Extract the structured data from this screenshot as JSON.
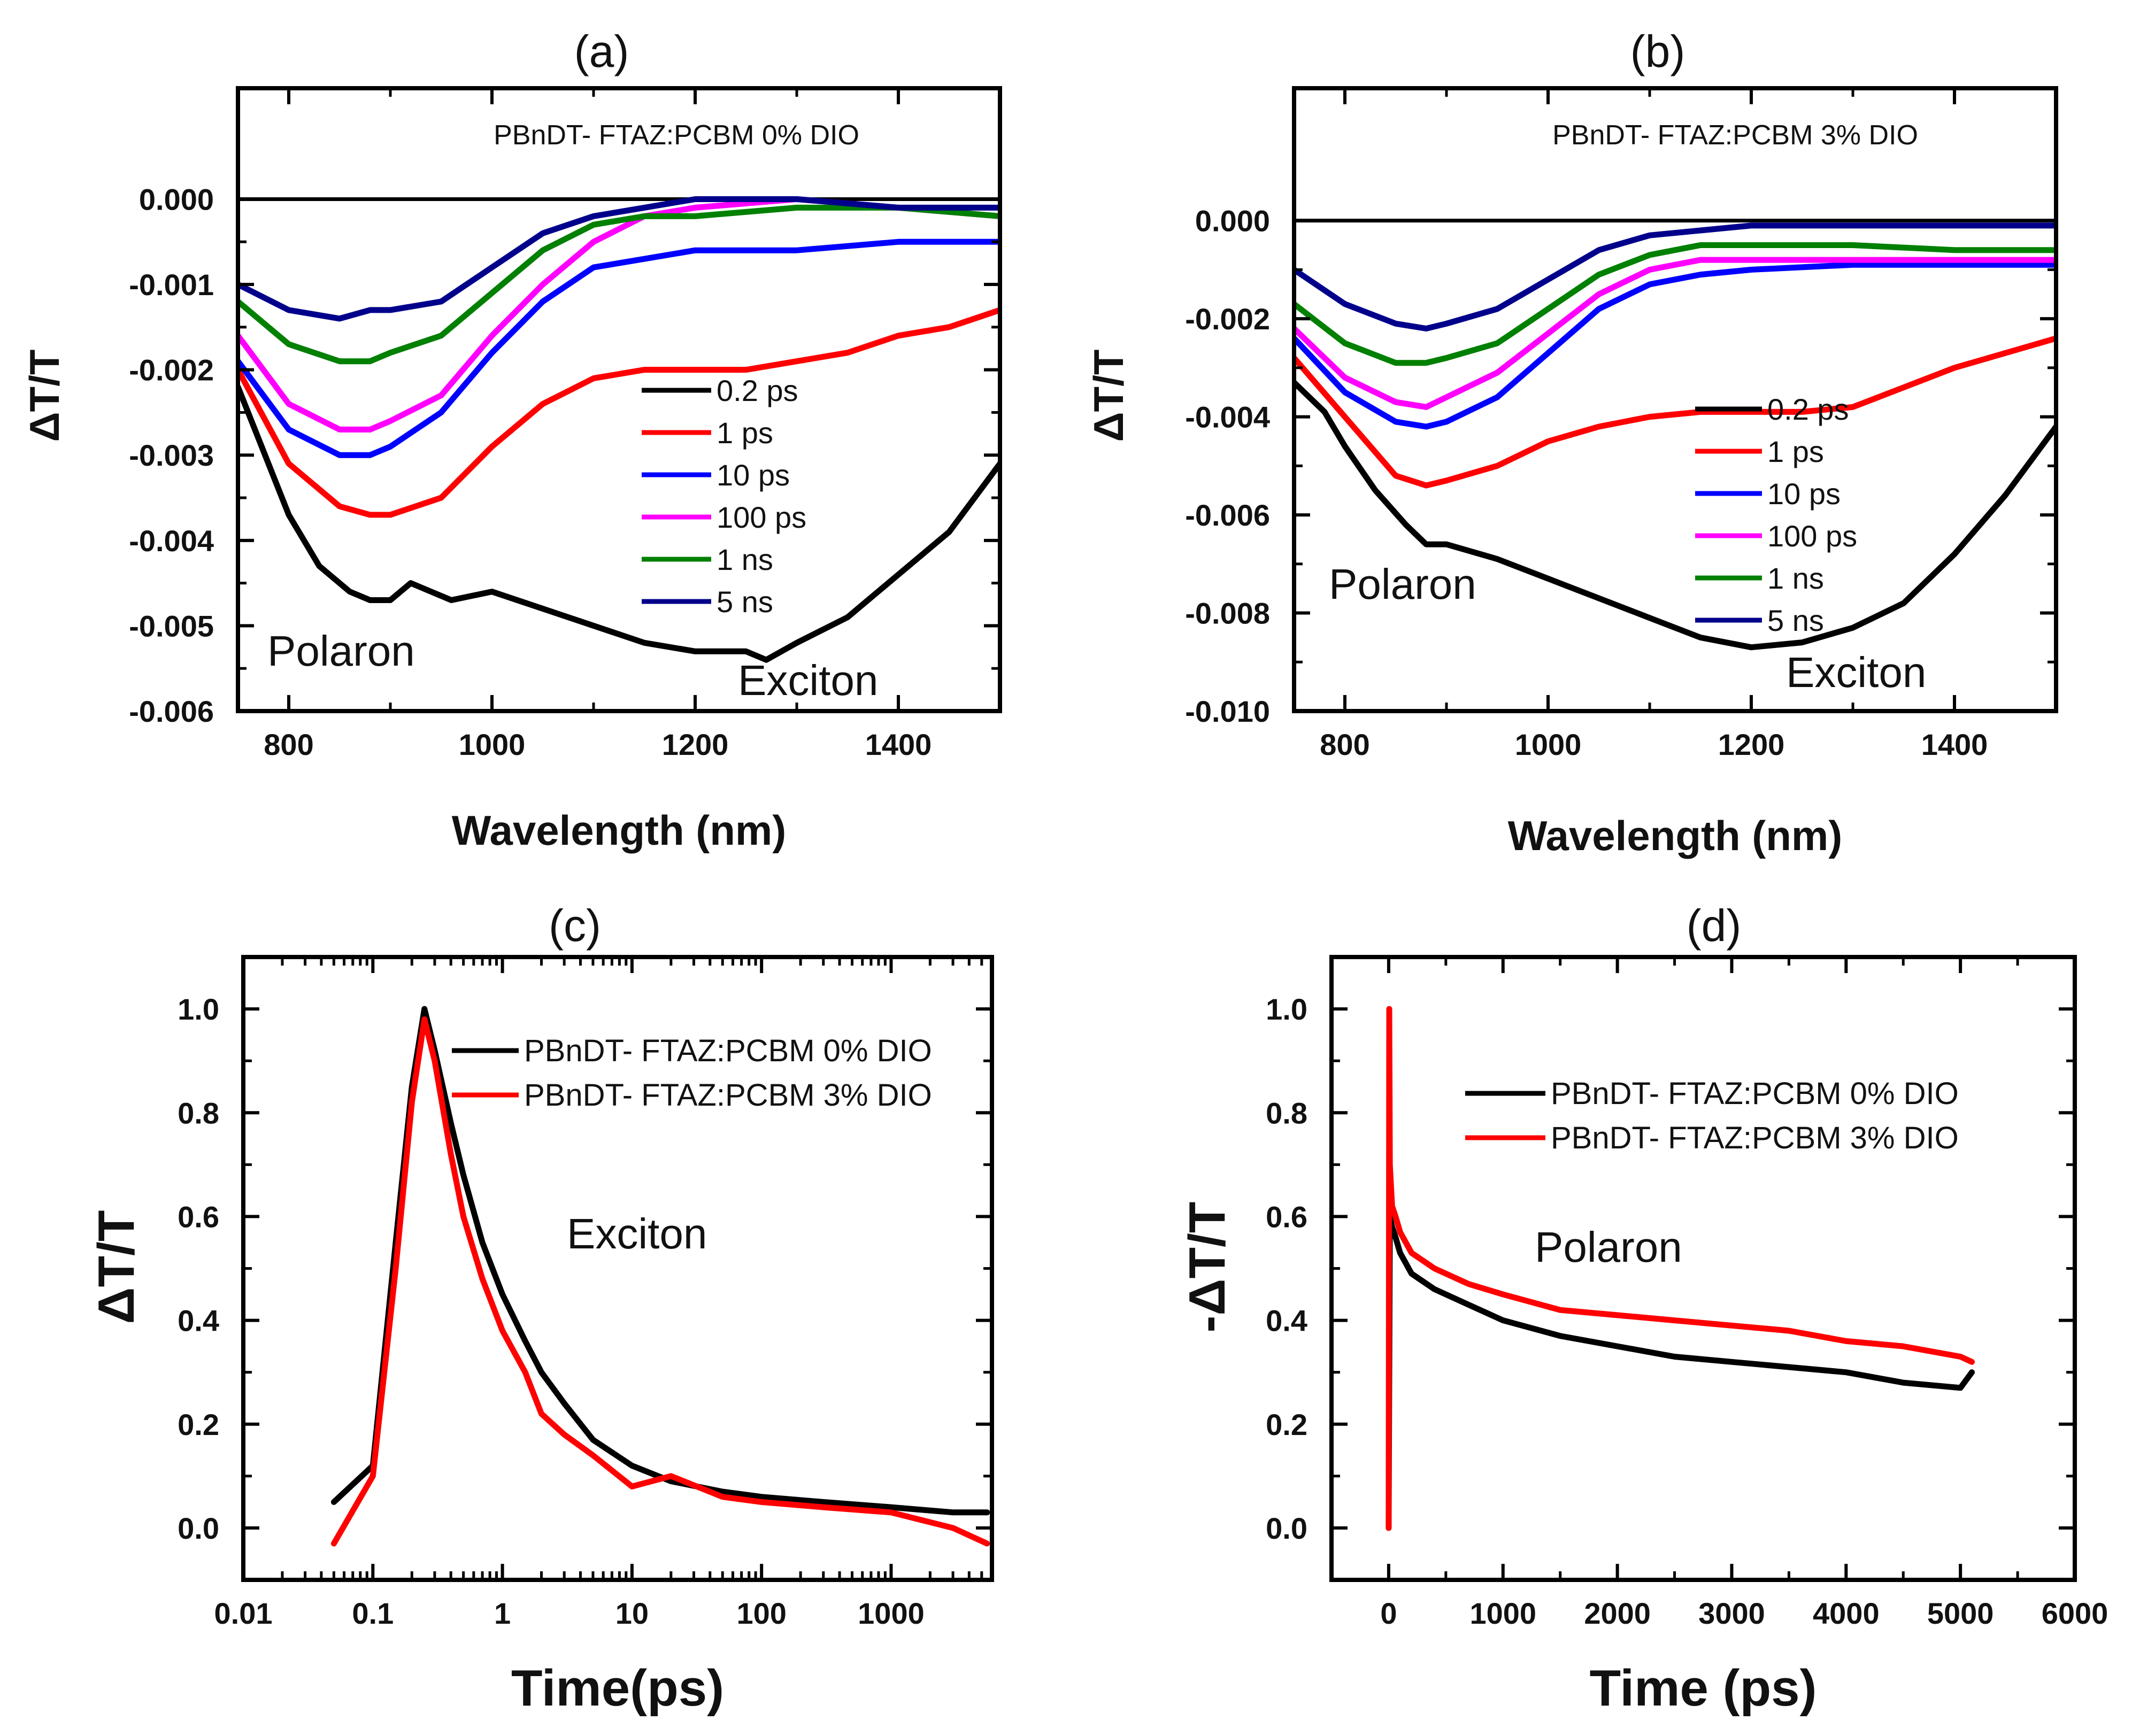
{
  "figure": {
    "panels": [
      "(a)",
      "(b)",
      "(c)",
      "(d)"
    ]
  },
  "chart_data": [
    {
      "id": "a",
      "type": "line",
      "panel_label": "(a)",
      "title": "PBnDT- FTAZ:PCBM 0% DIO",
      "xlabel": "Wavelength (nm)",
      "ylabel": "ΔT/T",
      "xlim": [
        750,
        1500
      ],
      "ylim": [
        -0.006,
        0.0013
      ],
      "xticks": [
        800,
        1000,
        1200,
        1400
      ],
      "xtick_labels": [
        "800",
        "1000",
        "1200",
        "1400"
      ],
      "yticks": [
        0.0,
        -0.001,
        -0.002,
        -0.003,
        -0.004,
        -0.005,
        -0.006
      ],
      "ytick_labels": [
        "0.000",
        "-0.001",
        "-0.002",
        "-0.003",
        "-0.004",
        "-0.005",
        "-0.006"
      ],
      "zero_line": true,
      "legend_position": "center-right",
      "annotations": [
        "Polaron",
        "Exciton"
      ],
      "series": [
        {
          "name": "0.2 ps",
          "color": "#000000",
          "x": [
            750,
            770,
            800,
            830,
            860,
            880,
            900,
            920,
            940,
            960,
            1000,
            1050,
            1100,
            1150,
            1200,
            1250,
            1270,
            1300,
            1350,
            1400,
            1450,
            1500
          ],
          "y": [
            -0.0022,
            -0.0028,
            -0.0037,
            -0.0043,
            -0.0046,
            -0.0047,
            -0.0047,
            -0.0045,
            -0.0046,
            -0.0047,
            -0.0046,
            -0.0048,
            -0.005,
            -0.0052,
            -0.0053,
            -0.0053,
            -0.0054,
            -0.0052,
            -0.0049,
            -0.0044,
            -0.0039,
            -0.0031
          ]
        },
        {
          "name": "1 ps",
          "color": "#ff0000",
          "x": [
            750,
            800,
            850,
            880,
            900,
            950,
            1000,
            1050,
            1100,
            1150,
            1200,
            1250,
            1300,
            1350,
            1400,
            1450,
            1500
          ],
          "y": [
            -0.002,
            -0.0031,
            -0.0036,
            -0.0037,
            -0.0037,
            -0.0035,
            -0.0029,
            -0.0024,
            -0.0021,
            -0.002,
            -0.002,
            -0.002,
            -0.0019,
            -0.0018,
            -0.0016,
            -0.0015,
            -0.0013
          ]
        },
        {
          "name": "10 ps",
          "color": "#0000ff",
          "x": [
            750,
            800,
            850,
            880,
            900,
            950,
            1000,
            1050,
            1100,
            1150,
            1200,
            1300,
            1400,
            1500
          ],
          "y": [
            -0.0019,
            -0.0027,
            -0.003,
            -0.003,
            -0.0029,
            -0.0025,
            -0.0018,
            -0.0012,
            -0.0008,
            -0.0007,
            -0.0006,
            -0.0006,
            -0.0005,
            -0.0005
          ]
        },
        {
          "name": "100 ps",
          "color": "#ff00ff",
          "x": [
            750,
            800,
            850,
            880,
            900,
            950,
            1000,
            1050,
            1100,
            1150,
            1200,
            1300,
            1400,
            1500
          ],
          "y": [
            -0.0016,
            -0.0024,
            -0.0027,
            -0.0027,
            -0.0026,
            -0.0023,
            -0.0016,
            -0.001,
            -0.0005,
            -0.0002,
            -0.0001,
            0.0,
            -0.0001,
            -0.0002
          ]
        },
        {
          "name": "1 ns",
          "color": "#008000",
          "x": [
            750,
            800,
            850,
            880,
            900,
            950,
            1000,
            1050,
            1100,
            1150,
            1200,
            1300,
            1400,
            1500
          ],
          "y": [
            -0.0012,
            -0.0017,
            -0.0019,
            -0.0019,
            -0.0018,
            -0.0016,
            -0.0011,
            -0.0006,
            -0.0003,
            -0.0002,
            -0.0002,
            -0.0001,
            -0.0001,
            -0.0002
          ]
        },
        {
          "name": "5 ns",
          "color": "#00008b",
          "x": [
            750,
            800,
            850,
            880,
            900,
            950,
            1000,
            1050,
            1100,
            1150,
            1200,
            1300,
            1400,
            1500
          ],
          "y": [
            -0.001,
            -0.0013,
            -0.0014,
            -0.0013,
            -0.0013,
            -0.0012,
            -0.0008,
            -0.0004,
            -0.0002,
            -0.0001,
            0.0,
            0.0,
            -0.0001,
            -0.0001
          ]
        }
      ]
    },
    {
      "id": "b",
      "type": "line",
      "panel_label": "(b)",
      "title": "PBnDT- FTAZ:PCBM 3% DIO",
      "xlabel": "Wavelength (nm)",
      "ylabel": "ΔT/T",
      "xlim": [
        750,
        1500
      ],
      "ylim": [
        -0.01,
        0.0027
      ],
      "xticks": [
        800,
        1000,
        1200,
        1400
      ],
      "xtick_labels": [
        "800",
        "1000",
        "1200",
        "1400"
      ],
      "yticks": [
        0.0,
        -0.002,
        -0.004,
        -0.006,
        -0.008,
        -0.01
      ],
      "ytick_labels": [
        "0.000",
        "-0.002",
        "-0.004",
        "-0.006",
        "-0.008",
        "-0.010"
      ],
      "zero_line": true,
      "legend_position": "center-right",
      "annotations": [
        "Polaron",
        "Exciton"
      ],
      "series": [
        {
          "name": "0.2 ps",
          "color": "#000000",
          "x": [
            750,
            780,
            800,
            830,
            860,
            880,
            900,
            950,
            1000,
            1050,
            1100,
            1150,
            1200,
            1250,
            1300,
            1350,
            1400,
            1450,
            1500
          ],
          "y": [
            -0.0033,
            -0.0039,
            -0.0046,
            -0.0055,
            -0.0062,
            -0.0066,
            -0.0066,
            -0.0069,
            -0.0073,
            -0.0077,
            -0.0081,
            -0.0085,
            -0.0087,
            -0.0086,
            -0.0083,
            -0.0078,
            -0.0068,
            -0.0056,
            -0.0042
          ]
        },
        {
          "name": "1 ps",
          "color": "#ff0000",
          "x": [
            750,
            800,
            850,
            880,
            900,
            950,
            1000,
            1050,
            1100,
            1150,
            1200,
            1250,
            1300,
            1350,
            1400,
            1450,
            1500
          ],
          "y": [
            -0.0028,
            -0.004,
            -0.0052,
            -0.0054,
            -0.0053,
            -0.005,
            -0.0045,
            -0.0042,
            -0.004,
            -0.0039,
            -0.0039,
            -0.0039,
            -0.0038,
            -0.0034,
            -0.003,
            -0.0027,
            -0.0024
          ]
        },
        {
          "name": "10 ps",
          "color": "#0000ff",
          "x": [
            750,
            800,
            850,
            880,
            900,
            950,
            1000,
            1050,
            1100,
            1150,
            1200,
            1300,
            1400,
            1500
          ],
          "y": [
            -0.0024,
            -0.0035,
            -0.0041,
            -0.0042,
            -0.0041,
            -0.0036,
            -0.0027,
            -0.0018,
            -0.0013,
            -0.0011,
            -0.001,
            -0.0009,
            -0.0009,
            -0.0009
          ]
        },
        {
          "name": "100 ps",
          "color": "#ff00ff",
          "x": [
            750,
            800,
            850,
            880,
            900,
            950,
            1000,
            1050,
            1100,
            1150,
            1200,
            1300,
            1400,
            1500
          ],
          "y": [
            -0.0022,
            -0.0032,
            -0.0037,
            -0.0038,
            -0.0036,
            -0.0031,
            -0.0023,
            -0.0015,
            -0.001,
            -0.0008,
            -0.0008,
            -0.0008,
            -0.0008,
            -0.0008
          ]
        },
        {
          "name": "1 ns",
          "color": "#008000",
          "x": [
            750,
            800,
            850,
            880,
            900,
            950,
            1000,
            1050,
            1100,
            1150,
            1200,
            1300,
            1400,
            1500
          ],
          "y": [
            -0.0017,
            -0.0025,
            -0.0029,
            -0.0029,
            -0.0028,
            -0.0025,
            -0.0018,
            -0.0011,
            -0.0007,
            -0.0005,
            -0.0005,
            -0.0005,
            -0.0006,
            -0.0006
          ]
        },
        {
          "name": "5 ns",
          "color": "#00008b",
          "x": [
            750,
            800,
            850,
            880,
            900,
            950,
            1000,
            1050,
            1100,
            1150,
            1200,
            1300,
            1400,
            1500
          ],
          "y": [
            -0.001,
            -0.0017,
            -0.0021,
            -0.0022,
            -0.0021,
            -0.0018,
            -0.0012,
            -0.0006,
            -0.0003,
            -0.0002,
            -0.0001,
            -0.0001,
            -0.0001,
            -0.0001
          ]
        }
      ]
    },
    {
      "id": "c",
      "type": "line",
      "panel_label": "(c)",
      "xlabel": "Time(ps)",
      "ylabel": "ΔT/T",
      "xscale": "log",
      "xlim": [
        0.01,
        6000
      ],
      "ylim": [
        -0.1,
        1.1
      ],
      "xticks": [
        0.01,
        0.1,
        1,
        10,
        100,
        1000
      ],
      "xtick_labels": [
        "0.01",
        "0.1",
        "1",
        "10",
        "100",
        "1000"
      ],
      "yticks": [
        0.0,
        0.2,
        0.4,
        0.6,
        0.8,
        1.0
      ],
      "ytick_labels": [
        "0.0",
        "0.2",
        "0.4",
        "0.6",
        "0.8",
        "1.0"
      ],
      "legend_position": "top-right",
      "annotations": [
        "Exciton"
      ],
      "series": [
        {
          "name": "PBnDT- FTAZ:PCBM 0% DIO",
          "color": "#000000",
          "x": [
            0.05,
            0.1,
            0.15,
            0.2,
            0.25,
            0.3,
            0.4,
            0.5,
            0.7,
            1,
            1.5,
            2,
            3,
            5,
            10,
            20,
            50,
            100,
            300,
            1000,
            3000,
            5500
          ],
          "y": [
            0.05,
            0.12,
            0.55,
            0.85,
            1.0,
            0.92,
            0.78,
            0.68,
            0.55,
            0.45,
            0.36,
            0.3,
            0.24,
            0.17,
            0.12,
            0.09,
            0.07,
            0.06,
            0.05,
            0.04,
            0.03,
            0.03
          ]
        },
        {
          "name": "PBnDT- FTAZ:PCBM 3% DIO",
          "color": "#ff0000",
          "x": [
            0.05,
            0.1,
            0.15,
            0.2,
            0.25,
            0.3,
            0.4,
            0.5,
            0.7,
            1,
            1.5,
            2,
            3,
            5,
            10,
            20,
            50,
            100,
            300,
            1000,
            3000,
            5500
          ],
          "y": [
            -0.03,
            0.1,
            0.5,
            0.82,
            0.98,
            0.9,
            0.72,
            0.6,
            0.48,
            0.38,
            0.3,
            0.22,
            0.18,
            0.14,
            0.08,
            0.1,
            0.06,
            0.05,
            0.04,
            0.03,
            0.0,
            -0.03
          ]
        }
      ]
    },
    {
      "id": "d",
      "type": "line",
      "panel_label": "(d)",
      "xlabel": "Time (ps)",
      "ylabel": "-ΔT/T",
      "xlim": [
        -500,
        6000
      ],
      "ylim": [
        -0.1,
        1.1
      ],
      "xticks": [
        0,
        1000,
        2000,
        3000,
        4000,
        5000,
        6000
      ],
      "xtick_labels": [
        "0",
        "1000",
        "2000",
        "3000",
        "4000",
        "5000",
        "6000"
      ],
      "yticks": [
        0.0,
        0.2,
        0.4,
        0.6,
        0.8,
        1.0
      ],
      "ytick_labels": [
        "0.0",
        "0.2",
        "0.4",
        "0.6",
        "0.8",
        "1.0"
      ],
      "legend_position": "top-right",
      "annotations": [
        "Polaron"
      ],
      "series": [
        {
          "name": "PBnDT- FTAZ:PCBM 0% DIO",
          "color": "#000000",
          "x": [
            0,
            10,
            30,
            60,
            100,
            200,
            400,
            700,
            1000,
            1500,
            2000,
            2500,
            3000,
            3500,
            4000,
            4500,
            5000,
            5100
          ],
          "y": [
            0.0,
            0.6,
            0.58,
            0.56,
            0.53,
            0.49,
            0.46,
            0.43,
            0.4,
            0.37,
            0.35,
            0.33,
            0.32,
            0.31,
            0.3,
            0.28,
            0.27,
            0.3
          ]
        },
        {
          "name": "PBnDT- FTAZ:PCBM 3% DIO",
          "color": "#ff0000",
          "x": [
            0,
            5,
            10,
            30,
            60,
            100,
            200,
            400,
            700,
            1000,
            1500,
            2000,
            2500,
            3000,
            3500,
            4000,
            4500,
            5000,
            5100
          ],
          "y": [
            0.0,
            1.0,
            0.7,
            0.62,
            0.6,
            0.57,
            0.53,
            0.5,
            0.47,
            0.45,
            0.42,
            0.41,
            0.4,
            0.39,
            0.38,
            0.36,
            0.35,
            0.33,
            0.32
          ]
        }
      ]
    }
  ]
}
